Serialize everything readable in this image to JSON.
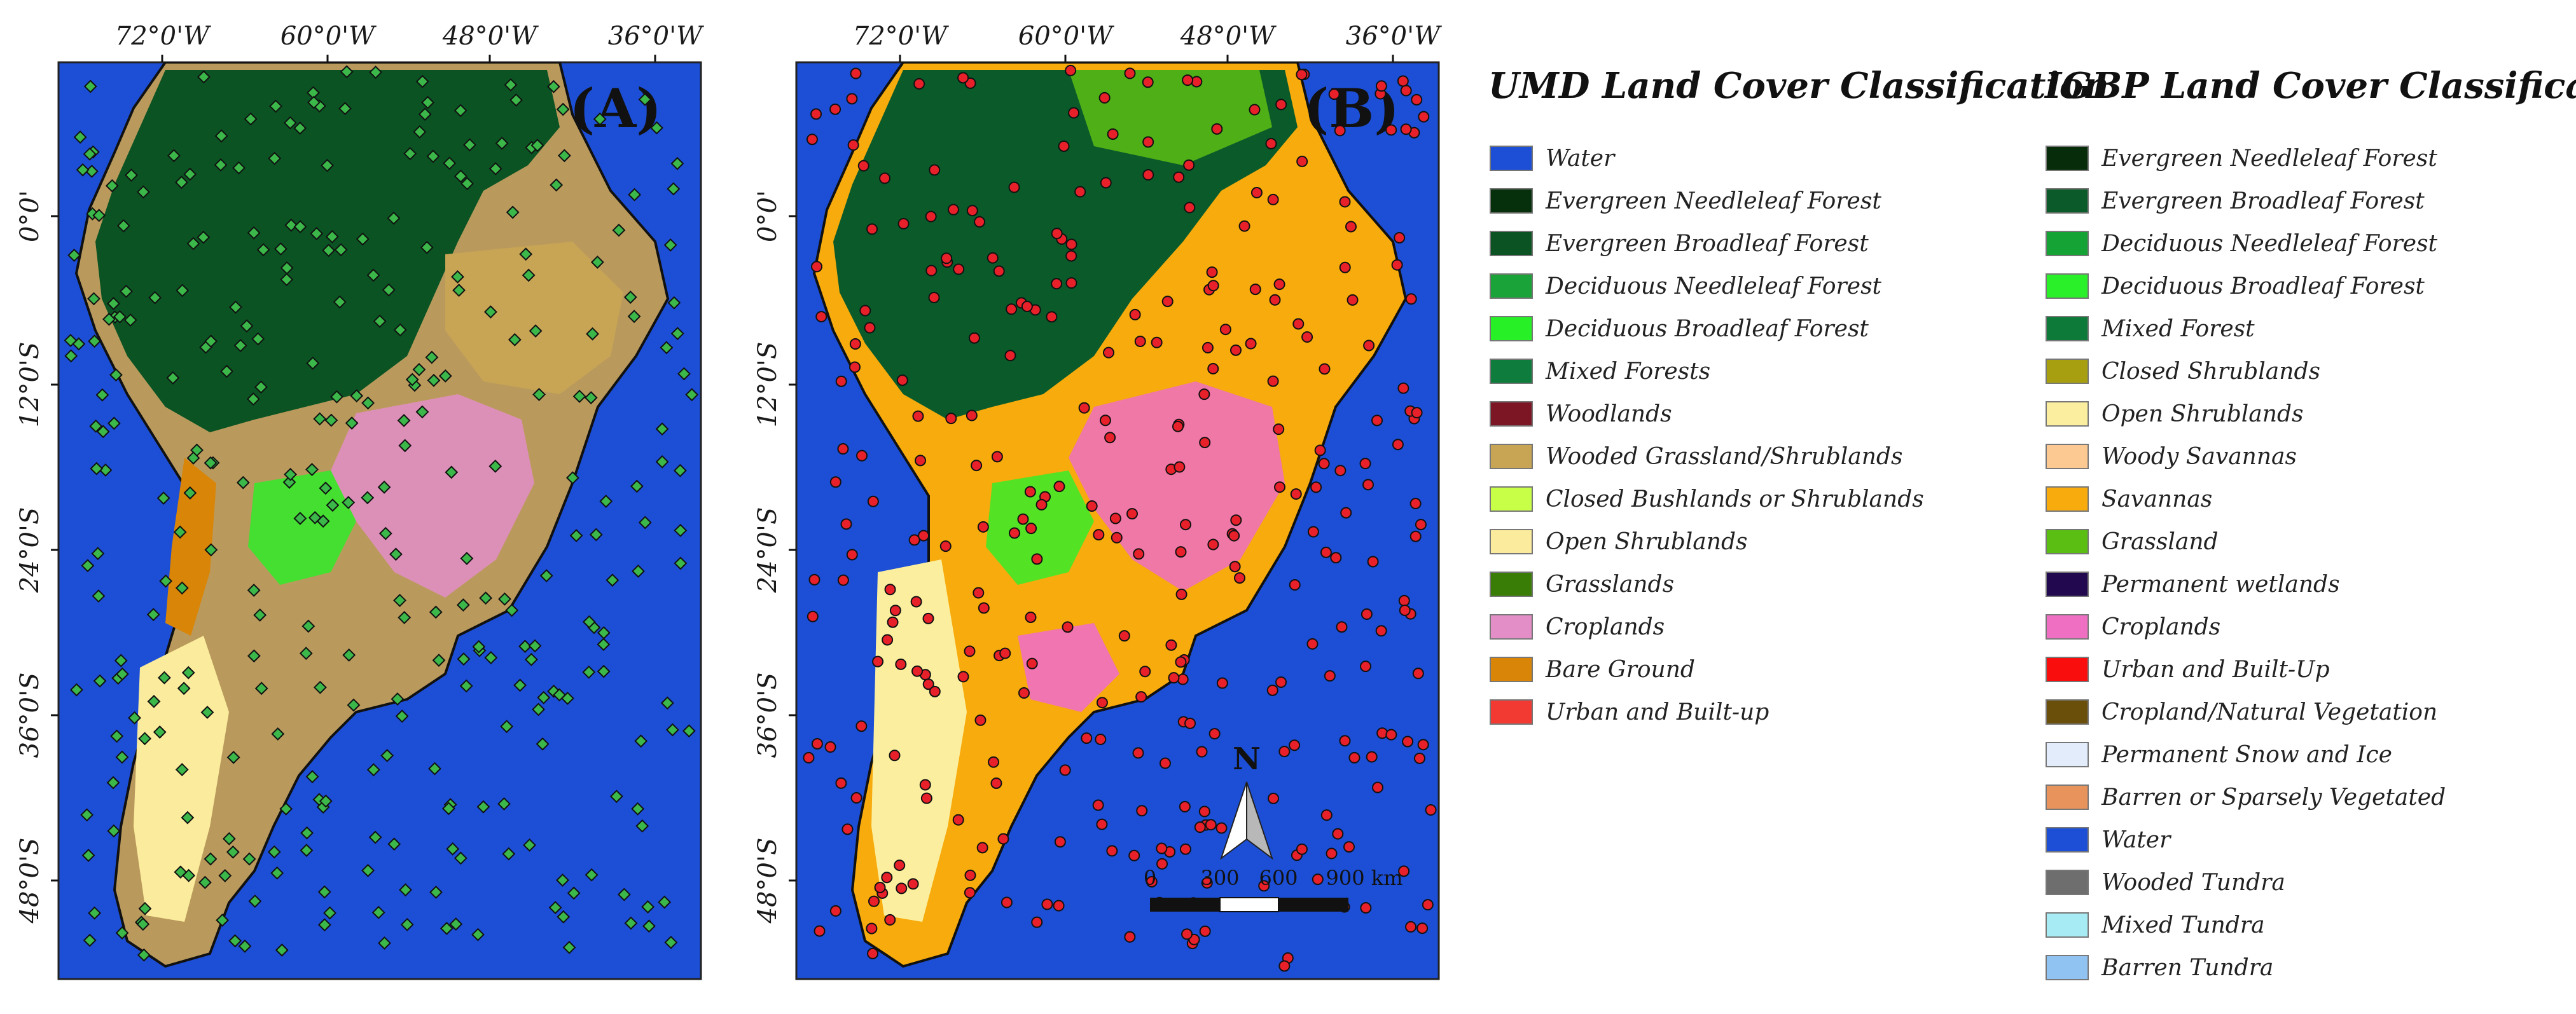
{
  "panels": [
    {
      "label": "(A)",
      "site_color": "#3bb849"
    },
    {
      "label": "(B)",
      "site_color": "#e8202a"
    }
  ],
  "axes": {
    "longitudes": [
      "72°0'W",
      "60°0'W",
      "48°0'W",
      "36°0'W"
    ],
    "latitudes": [
      "0°0'",
      "12°0'S",
      "24°0'S",
      "36°0'S",
      "48°0'S"
    ]
  },
  "north_arrow": {
    "label": "N"
  },
  "scale_bar": {
    "ticks": [
      "0",
      "300",
      "600",
      "900 km"
    ]
  },
  "legends": {
    "umd": {
      "title": "UMD Land Cover Classification",
      "items": [
        {
          "label": "Water",
          "color": "#1c4fd6"
        },
        {
          "label": "Evergreen Needleleaf Forest",
          "color": "#06300c"
        },
        {
          "label": "Evergreen Broadleaf Forest",
          "color": "#0b5323"
        },
        {
          "label": "Deciduous Needleleaf Forest",
          "color": "#19a338"
        },
        {
          "label": "Deciduous Broadleaf Forest",
          "color": "#27f026"
        },
        {
          "label": "Mixed Forests",
          "color": "#0e7c3c"
        },
        {
          "label": "Woodlands",
          "color": "#7c1624"
        },
        {
          "label": "Wooded Grassland/Shrublands",
          "color": "#c8a455"
        },
        {
          "label": "Closed Bushlands or Shrublands",
          "color": "#c8ff47"
        },
        {
          "label": "Open Shrublands",
          "color": "#fbeb9c"
        },
        {
          "label": "Grasslands",
          "color": "#3a7d06"
        },
        {
          "label": "Croplands",
          "color": "#e38ec7"
        },
        {
          "label": "Bare Ground",
          "color": "#d98508"
        },
        {
          "label": "Urban and Built-up",
          "color": "#f23a33"
        }
      ]
    },
    "igbp": {
      "title": "IGBP Land Cover Classification",
      "items": [
        {
          "label": "Evergreen Needleleaf Forest",
          "color": "#062c0a"
        },
        {
          "label": "Evergreen Broadleaf Forest",
          "color": "#0b5b2a"
        },
        {
          "label": "Deciduous Needleleaf Forest",
          "color": "#15a335"
        },
        {
          "label": "Deciduous Broadleaf Forest",
          "color": "#2af02a"
        },
        {
          "label": "Mixed Forest",
          "color": "#0d7a3a"
        },
        {
          "label": "Closed Shrublands",
          "color": "#a79f10"
        },
        {
          "label": "Open Shrublands",
          "color": "#fbef9f"
        },
        {
          "label": "Woody Savannas",
          "color": "#fbc991"
        },
        {
          "label": "Savannas",
          "color": "#f7ab0d"
        },
        {
          "label": "Grassland",
          "color": "#5bbf13"
        },
        {
          "label": "Permanent wetlands",
          "color": "#21084f"
        },
        {
          "label": "Croplands",
          "color": "#ef6fc2"
        },
        {
          "label": "Urban and Built-Up",
          "color": "#fa0d0d"
        },
        {
          "label": "Cropland/Natural Vegetation",
          "color": "#6a4f0a"
        },
        {
          "label": "Permanent Snow and Ice",
          "color": "#e3ecfb"
        },
        {
          "label": "Barren or Sparsely Vegetated",
          "color": "#e8925c"
        },
        {
          "label": "Water",
          "color": "#1c4fd6"
        },
        {
          "label": "Wooded Tundra",
          "color": "#6e6e6e"
        },
        {
          "label": "Mixed Tundra",
          "color": "#a7ecf5"
        },
        {
          "label": "Barren Tundra",
          "color": "#90c3f1"
        }
      ]
    }
  }
}
